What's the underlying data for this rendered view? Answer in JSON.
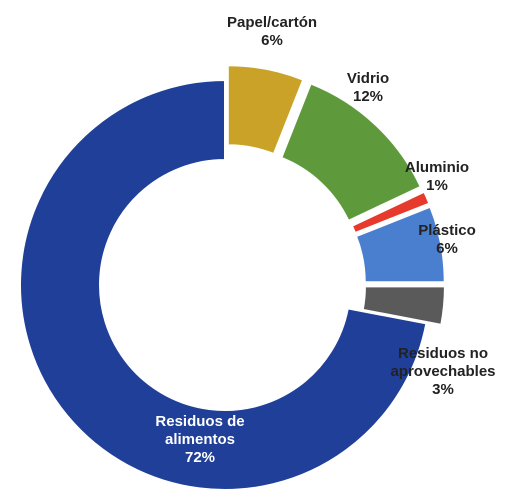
{
  "chart_data": {
    "type": "donut",
    "categories": [
      "Papel/cartón",
      "Vidrio",
      "Aluminio",
      "Plástico",
      "Residuos no aprovechables",
      "Residuos de alimentos"
    ],
    "values": [
      6,
      12,
      1,
      6,
      3,
      72
    ],
    "value_labels": [
      "6%",
      "12%",
      "1%",
      "6%",
      "3%",
      "72%"
    ],
    "colors": [
      "#c9a227",
      "#5e9a3c",
      "#e53a2c",
      "#4a7fd0",
      "#5a5a5a",
      "#1f3f99"
    ]
  }
}
